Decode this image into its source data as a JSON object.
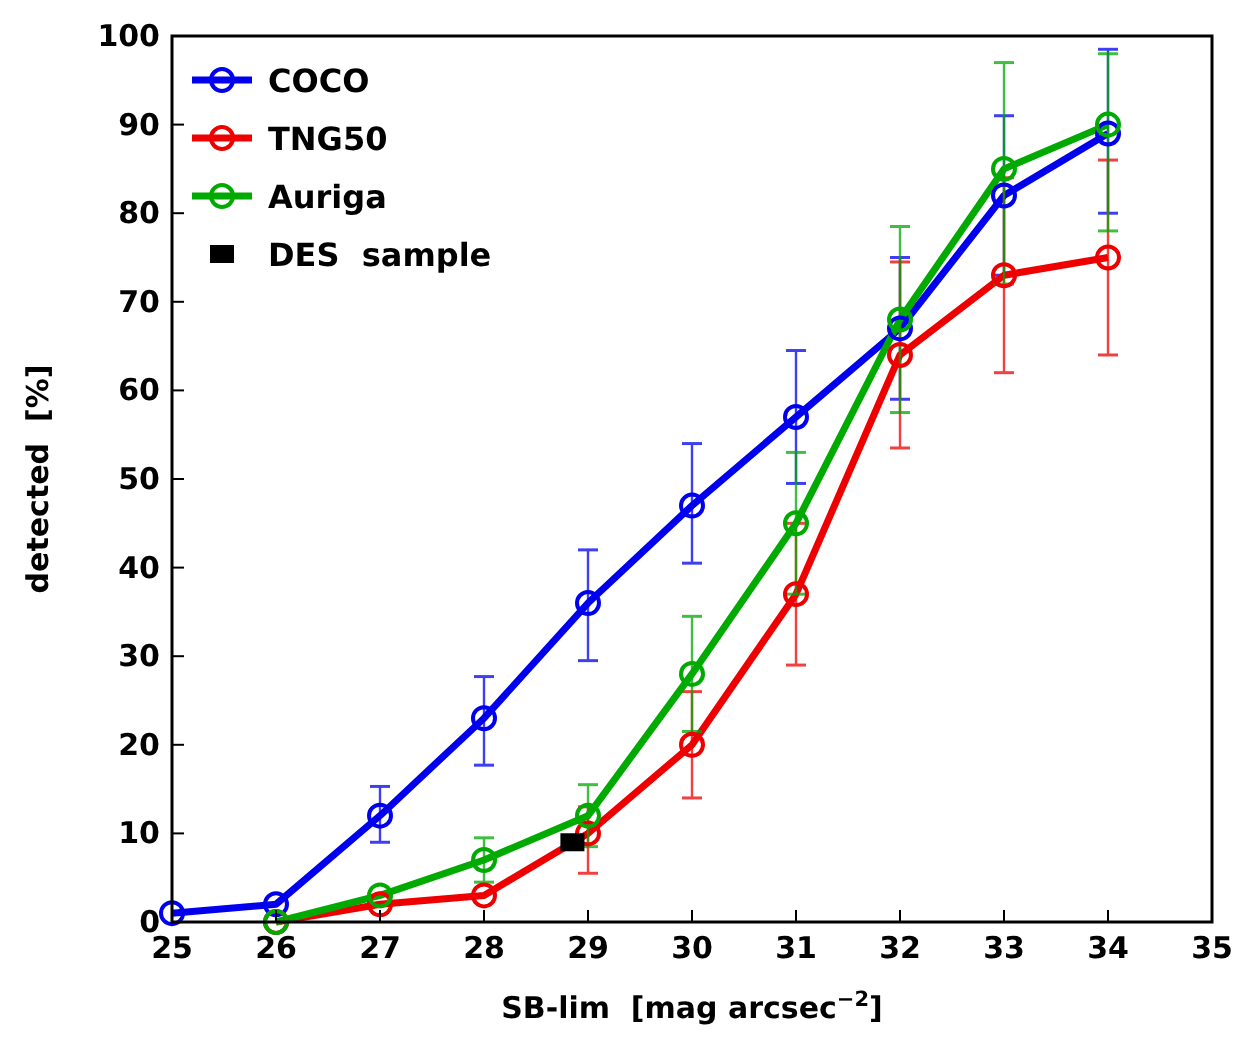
{
  "chart_data": {
    "type": "line",
    "xlabel": "SB-lim  [mag arcsec$^{−2}$]",
    "ylabel": "detected  [%]",
    "x": [
      25,
      26,
      27,
      28,
      29,
      30,
      31,
      32,
      33,
      34
    ],
    "xlim": [
      25,
      35
    ],
    "xticks": [
      25,
      26,
      27,
      28,
      29,
      30,
      31,
      32,
      33,
      34,
      35
    ],
    "ylim": [
      0,
      100
    ],
    "yticks": [
      0,
      10,
      20,
      30,
      40,
      50,
      60,
      70,
      80,
      90,
      100
    ],
    "grid": false,
    "legend": "top left",
    "marker": "circle",
    "line_style": "solid",
    "series": [
      {
        "name": "COCO",
        "color": "#0000ee",
        "values": [
          1,
          2,
          12,
          23,
          36,
          47,
          57,
          67,
          82,
          89
        ],
        "errors": [
          null,
          null,
          [
            9,
            15.3
          ],
          [
            17.7,
            27.7
          ],
          [
            29.5,
            42
          ],
          [
            40.5,
            54
          ],
          [
            49.5,
            64.5
          ],
          [
            59,
            75
          ],
          [
            73,
            91
          ],
          [
            80,
            98.5
          ]
        ]
      },
      {
        "name": "TNG50",
        "color": "#ee0000",
        "values": [
          null,
          0,
          2,
          3,
          10,
          20,
          37,
          64,
          73,
          75
        ],
        "errors": [
          null,
          null,
          null,
          null,
          [
            5.5,
            13
          ],
          [
            14,
            26
          ],
          [
            29,
            45
          ],
          [
            53.5,
            74.5
          ],
          [
            62,
            84
          ],
          [
            64,
            86
          ]
        ]
      },
      {
        "name": "Auriga",
        "color": "#00aa00",
        "values": [
          null,
          0,
          3,
          7,
          12,
          28,
          45,
          68,
          85,
          90
        ],
        "errors": [
          null,
          null,
          null,
          [
            4.5,
            9.5
          ],
          [
            8.5,
            15.5
          ],
          [
            21.5,
            34.5
          ],
          [
            37,
            53
          ],
          [
            57.5,
            78.5
          ],
          [
            72,
            97
          ],
          [
            78,
            98
          ]
        ]
      },
      {
        "name": "DES  sample",
        "type": "scatter",
        "marker": "square",
        "color": "#000000",
        "x": [
          28.85
        ],
        "values": [
          9
        ]
      }
    ]
  }
}
